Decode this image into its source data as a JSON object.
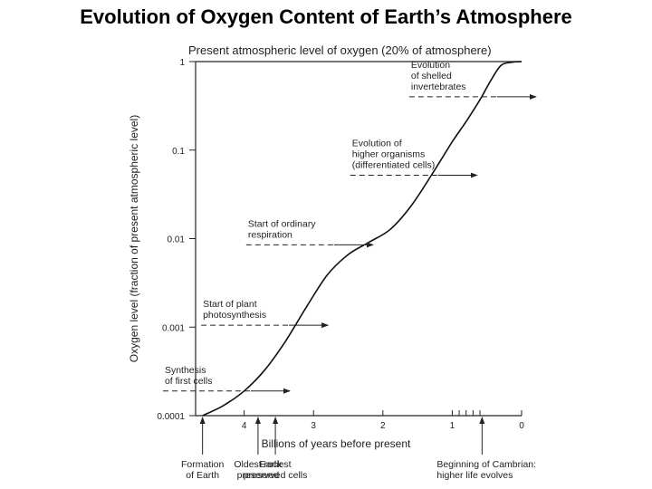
{
  "page_title": "Evolution of Oxygen Content of Earth’s Atmosphere",
  "chart_data": {
    "type": "line",
    "title": "Present atmospheric level of oxygen (20% of atmosphere)",
    "xlabel": "Billions of years before present",
    "ylabel": "Oxygen level (fraction of present atmospheric level)",
    "x_scale": "linear",
    "x_reversed": true,
    "xlim": [
      4.7,
      0
    ],
    "y_scale": "log",
    "ylim": [
      0.0001,
      1
    ],
    "x_ticks": [
      {
        "value": 4,
        "label": "4"
      },
      {
        "value": 3,
        "label": "3"
      },
      {
        "value": 2,
        "label": "2"
      },
      {
        "value": 1,
        "label": "1"
      },
      {
        "value": 0,
        "label": "0"
      }
    ],
    "minor_x_ticks": [
      0.9,
      0.8,
      0.7,
      0.6
    ],
    "y_ticks": [
      {
        "value": 0.0001,
        "label": "0.0001"
      },
      {
        "value": 0.001,
        "label": "0.001"
      },
      {
        "value": 0.01,
        "label": "0.01"
      },
      {
        "value": 0.1,
        "label": "0.1"
      },
      {
        "value": 1,
        "label": "1"
      }
    ],
    "series": [
      {
        "x": [
          4.6,
          4.3,
          4.0,
          3.7,
          3.4,
          3.1,
          2.8,
          2.5,
          2.2,
          1.9,
          1.6,
          1.3,
          1.0,
          0.8,
          0.6,
          0.45,
          0.3,
          0.15,
          0.0
        ],
        "y": [
          0.0001,
          0.00013,
          0.00019,
          0.00033,
          0.0007,
          0.0017,
          0.0039,
          0.0066,
          0.0091,
          0.0126,
          0.023,
          0.052,
          0.124,
          0.21,
          0.37,
          0.6,
          0.9,
          0.98,
          1.0
        ]
      }
    ],
    "annotations": [
      {
        "lines": [
          "Evolution",
          "of shelled",
          "invertebrates"
        ],
        "arrow_x": 0.55,
        "arrow_y": 0.4
      },
      {
        "lines": [
          "Evolution of",
          "higher organisms",
          "(differentiated cells)"
        ],
        "arrow_x": 1.4,
        "arrow_y": 0.052
      },
      {
        "lines": [
          "Start of ordinary",
          "respiration"
        ],
        "arrow_x": 2.9,
        "arrow_y": 0.0085
      },
      {
        "lines": [
          "Start of plant",
          "photosynthesis"
        ],
        "arrow_x": 3.55,
        "arrow_y": 0.00105
      },
      {
        "lines": [
          "Synthesis",
          "of first cells"
        ],
        "arrow_x": 4.1,
        "arrow_y": 0.00019
      }
    ],
    "bottom_events": [
      {
        "lines": [
          "Formation",
          "of Earth"
        ],
        "x": 4.6
      },
      {
        "lines": [
          "Oldest rock",
          "preserved"
        ],
        "x": 3.8
      },
      {
        "lines": [
          "Earliest",
          "preserved cells"
        ],
        "x": 3.55
      },
      {
        "lines": [
          "Beginning of Cambrian:",
          "higher life evolves"
        ],
        "x": 0.57
      }
    ]
  }
}
